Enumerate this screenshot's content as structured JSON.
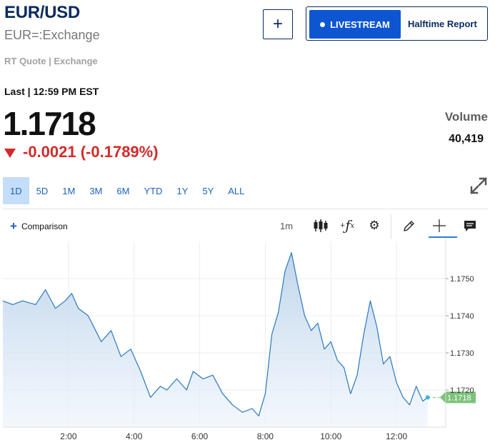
{
  "header": {
    "symbol": "EUR/USD",
    "exchange_name": "EUR=:Exchange",
    "rt_quote": "RT Quote | Exchange",
    "add_icon": "plus-icon",
    "livestream_label": "LIVESTREAM",
    "halftime_label": "Halftime Report"
  },
  "quote": {
    "last_line": "Last | 12:59 PM EST",
    "price": "1.1718",
    "change": "-0.0021 (-0.1789%)",
    "direction_icon": "down-triangle-icon",
    "change_color": "#d42a2a",
    "volume_label": "Volume",
    "volume_value": "40,419"
  },
  "ranges": {
    "items": [
      "1D",
      "5D",
      "1M",
      "3M",
      "6M",
      "YTD",
      "1Y",
      "5Y",
      "ALL"
    ],
    "active": "1D"
  },
  "toolbar": {
    "comparison_label": "Comparison",
    "interval_label": "1m",
    "icons": [
      "candlestick-icon",
      "function-icon",
      "gear-icon",
      "pencil-icon",
      "crosshair-icon",
      "comment-icon",
      "expand-icon"
    ]
  },
  "colors": {
    "brand_navy": "#0a2a5e",
    "accent_blue": "#0e56d1",
    "line": "#2a78c2",
    "last_price_tag": "#7ec27a"
  },
  "chart_data": {
    "type": "area",
    "title": "",
    "xlabel": "",
    "ylabel": "",
    "x_ticks": [
      "2:00",
      "4:00",
      "6:00",
      "8:00",
      "10:00",
      "12:00"
    ],
    "y_ticks": [
      "1.1720",
      "1.1730",
      "1.1740",
      "1.1750"
    ],
    "ylim": [
      1.171,
      1.176
    ],
    "xlim": [
      0.0,
      13.5
    ],
    "last_price_label": "1.1718",
    "grid": true,
    "series": [
      {
        "x": [
          0.0,
          0.3,
          0.6,
          1.0,
          1.3,
          1.6,
          1.9,
          2.1,
          2.3,
          2.6,
          3.0,
          3.3,
          3.6,
          3.9,
          4.2,
          4.5,
          4.8,
          5.0,
          5.3,
          5.6,
          5.8,
          6.1,
          6.4,
          6.7,
          7.0,
          7.3,
          7.6,
          7.8,
          8.0,
          8.2,
          8.4,
          8.6,
          8.8,
          9.0,
          9.2,
          9.4,
          9.6,
          9.8,
          10.0,
          10.2,
          10.4,
          10.6,
          10.8,
          11.0,
          11.2,
          11.4,
          11.6,
          11.8,
          12.0,
          12.2,
          12.4,
          12.6,
          12.8,
          12.95
        ],
        "values": [
          1.1744,
          1.1743,
          1.1744,
          1.1743,
          1.1747,
          1.1742,
          1.1744,
          1.1746,
          1.1742,
          1.174,
          1.1733,
          1.1736,
          1.1729,
          1.1731,
          1.1725,
          1.1718,
          1.1721,
          1.172,
          1.1723,
          1.172,
          1.1725,
          1.1723,
          1.1724,
          1.1719,
          1.1716,
          1.1714,
          1.1715,
          1.1713,
          1.1719,
          1.1735,
          1.1741,
          1.1752,
          1.1757,
          1.1748,
          1.174,
          1.1736,
          1.1738,
          1.1731,
          1.1733,
          1.1728,
          1.1726,
          1.1719,
          1.1724,
          1.1735,
          1.1744,
          1.1737,
          1.1727,
          1.1729,
          1.1722,
          1.1718,
          1.1716,
          1.1721,
          1.1717,
          1.1718
        ]
      }
    ]
  }
}
